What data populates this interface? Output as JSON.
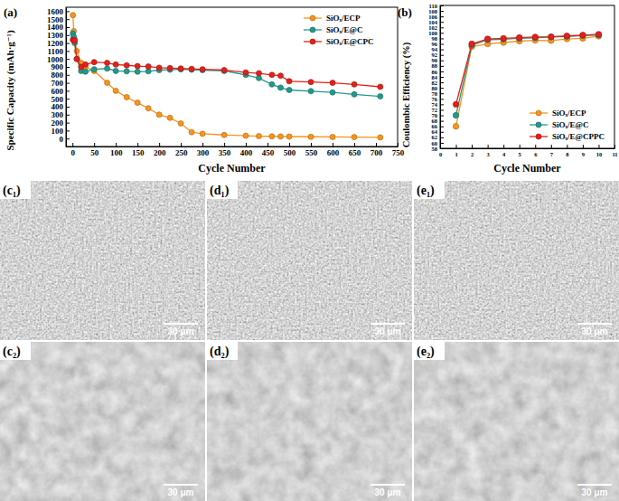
{
  "chart_data": [
    {
      "type": "line",
      "title": "(a)",
      "xlabel": "Cycle Number",
      "ylabel": "Specific Capacity (mAh·g⁻¹)",
      "x": [
        1,
        3,
        5,
        10,
        20,
        30,
        50,
        80,
        100,
        125,
        150,
        175,
        200,
        225,
        250,
        275,
        300,
        350,
        400,
        430,
        460,
        480,
        500,
        550,
        600,
        650,
        710
      ],
      "series": [
        {
          "name": "SiOₓ/ECP",
          "color": "#f7941d",
          "values": [
            1550,
            1350,
            1250,
            1100,
            950,
            900,
            850,
            700,
            600,
            520,
            450,
            380,
            300,
            260,
            190,
            80,
            60,
            45,
            35,
            30,
            28,
            26,
            25,
            22,
            20,
            18,
            15
          ]
        },
        {
          "name": "SiOₓ/E@C",
          "color": "#23998c",
          "values": [
            1320,
            1280,
            1200,
            1000,
            850,
            840,
            870,
            880,
            850,
            845,
            840,
            845,
            860,
            865,
            870,
            865,
            860,
            850,
            800,
            760,
            680,
            640,
            610,
            595,
            580,
            555,
            530
          ]
        },
        {
          "name": "SiOₓ/E@CPC",
          "color": "#e3201b",
          "values": [
            1240,
            1235,
            1230,
            1000,
            900,
            930,
            960,
            950,
            930,
            920,
            910,
            905,
            890,
            885,
            880,
            875,
            870,
            860,
            830,
            820,
            800,
            790,
            720,
            710,
            700,
            680,
            650
          ]
        }
      ],
      "xlim": [
        -15,
        750
      ],
      "xticks": [
        0,
        50,
        100,
        150,
        200,
        250,
        300,
        350,
        400,
        450,
        500,
        550,
        600,
        650,
        700,
        750
      ],
      "ylim": [
        -100,
        1650
      ],
      "yticks": [
        0,
        100,
        200,
        300,
        400,
        500,
        600,
        700,
        800,
        900,
        1000,
        1100,
        1200,
        1300,
        1400,
        1500,
        1600
      ],
      "grid": false,
      "legend": "upper right",
      "marker": "circle"
    },
    {
      "type": "line",
      "title": "(b)",
      "xlabel": "Cycle Number",
      "ylabel": "Coulombic Efficiency (%)",
      "x": [
        1,
        2,
        3,
        4,
        5,
        6,
        7,
        8,
        9,
        10
      ],
      "series": [
        {
          "name": "SiOₓ/ECP",
          "color": "#f7941d",
          "values": [
            66,
            95,
            96,
            96.5,
            97,
            97.3,
            97.2,
            97.8,
            98,
            98.8
          ]
        },
        {
          "name": "SiOₓ/E@C",
          "color": "#23998c",
          "values": [
            70,
            95.5,
            97.5,
            97.7,
            98,
            98.2,
            98.5,
            98.7,
            99,
            99.2
          ]
        },
        {
          "name": "SiOₓ/E@CPPC",
          "color": "#e3201b",
          "values": [
            74,
            96,
            97.8,
            98,
            98.3,
            98.5,
            98.6,
            98.9,
            99.2,
            99.5
          ]
        }
      ],
      "xlim": [
        0,
        11
      ],
      "xticks": [
        0,
        1,
        2,
        3,
        4,
        5,
        6,
        7,
        8,
        9,
        10,
        11
      ],
      "ylim": [
        58,
        110
      ],
      "yticks": [
        58,
        60,
        62,
        64,
        66,
        68,
        70,
        72,
        74,
        76,
        78,
        80,
        82,
        84,
        86,
        88,
        90,
        92,
        94,
        96,
        98,
        100,
        102,
        104,
        106,
        108,
        110
      ],
      "grid": false,
      "legend": "lower right",
      "marker": "circle"
    }
  ],
  "images": [
    {
      "label": "(c₁)",
      "scale_bar": "30 μm"
    },
    {
      "label": "(d₁)",
      "scale_bar": "30 μm"
    },
    {
      "label": "(e₁)",
      "scale_bar": "30 μm"
    },
    {
      "label": "(c₂)",
      "scale_bar": "30 μm"
    },
    {
      "label": "(d₂)",
      "scale_bar": "30 μm"
    },
    {
      "label": "(e₂)",
      "scale_bar": "30 μm"
    }
  ]
}
